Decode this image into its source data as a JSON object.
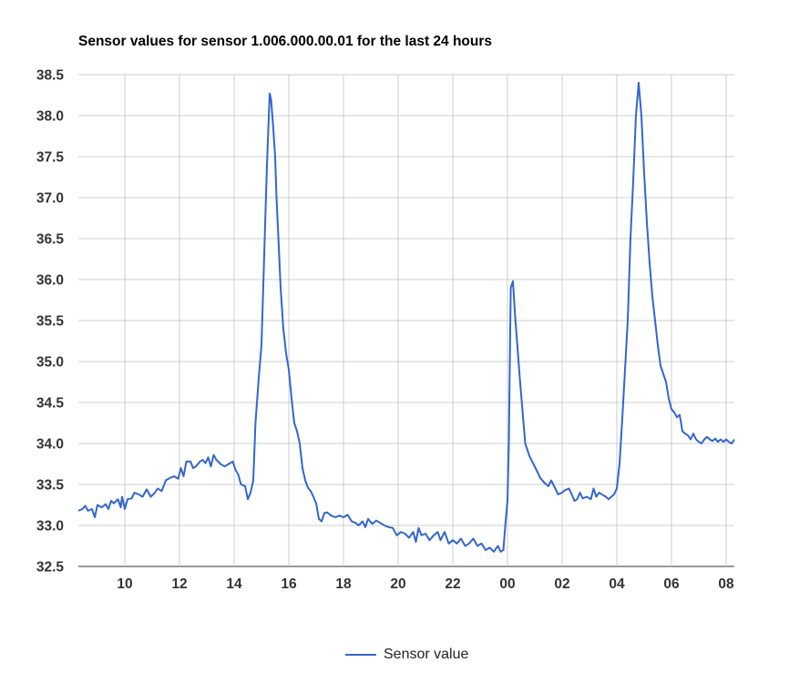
{
  "chart_data": {
    "type": "line",
    "title": "Sensor values for sensor 1.006.000.00.01 for the last 24 hours",
    "xlabel": "",
    "ylabel": "",
    "x_unit": "hours since 08:00 (first tick = 10:00 at x=2)",
    "xlim": [
      0.3,
      24.3
    ],
    "ylim": [
      32.5,
      38.5
    ],
    "y_ticks": [
      "32.5",
      "33.0",
      "33.5",
      "34.0",
      "34.5",
      "35.0",
      "35.5",
      "36.0",
      "36.5",
      "37.0",
      "37.5",
      "38.0",
      "38.5"
    ],
    "x_ticks": [
      {
        "x": 2,
        "label": "10"
      },
      {
        "x": 4,
        "label": "12"
      },
      {
        "x": 6,
        "label": "14"
      },
      {
        "x": 8,
        "label": "16"
      },
      {
        "x": 10,
        "label": "18"
      },
      {
        "x": 12,
        "label": "20"
      },
      {
        "x": 14,
        "label": "22"
      },
      {
        "x": 16,
        "label": "00"
      },
      {
        "x": 18,
        "label": "02"
      },
      {
        "x": 20,
        "label": "04"
      },
      {
        "x": 22,
        "label": "06"
      },
      {
        "x": 24,
        "label": "08"
      }
    ],
    "grid": true,
    "legend_position": "bottom",
    "series": [
      {
        "name": "Sensor value",
        "color": "#3366cc",
        "points": [
          [
            0.3,
            33.18
          ],
          [
            0.45,
            33.2
          ],
          [
            0.55,
            33.24
          ],
          [
            0.65,
            33.18
          ],
          [
            0.8,
            33.2
          ],
          [
            0.9,
            33.1
          ],
          [
            1.0,
            33.25
          ],
          [
            1.15,
            33.22
          ],
          [
            1.3,
            33.26
          ],
          [
            1.4,
            33.2
          ],
          [
            1.5,
            33.3
          ],
          [
            1.6,
            33.27
          ],
          [
            1.75,
            33.32
          ],
          [
            1.85,
            33.22
          ],
          [
            1.9,
            33.35
          ],
          [
            2.0,
            33.2
          ],
          [
            2.1,
            33.32
          ],
          [
            2.25,
            33.33
          ],
          [
            2.35,
            33.4
          ],
          [
            2.5,
            33.38
          ],
          [
            2.65,
            33.35
          ],
          [
            2.8,
            33.44
          ],
          [
            2.95,
            33.35
          ],
          [
            3.1,
            33.4
          ],
          [
            3.2,
            33.45
          ],
          [
            3.35,
            33.42
          ],
          [
            3.5,
            33.55
          ],
          [
            3.65,
            33.58
          ],
          [
            3.8,
            33.6
          ],
          [
            3.95,
            33.57
          ],
          [
            4.05,
            33.7
          ],
          [
            4.15,
            33.6
          ],
          [
            4.25,
            33.78
          ],
          [
            4.4,
            33.78
          ],
          [
            4.5,
            33.7
          ],
          [
            4.6,
            33.72
          ],
          [
            4.75,
            33.78
          ],
          [
            4.85,
            33.8
          ],
          [
            4.95,
            33.76
          ],
          [
            5.05,
            33.83
          ],
          [
            5.15,
            33.72
          ],
          [
            5.25,
            33.86
          ],
          [
            5.35,
            33.8
          ],
          [
            5.5,
            33.75
          ],
          [
            5.65,
            33.72
          ],
          [
            5.8,
            33.75
          ],
          [
            5.95,
            33.78
          ],
          [
            6.05,
            33.68
          ],
          [
            6.15,
            33.62
          ],
          [
            6.25,
            33.5
          ],
          [
            6.4,
            33.48
          ],
          [
            6.5,
            33.32
          ],
          [
            6.6,
            33.4
          ],
          [
            6.7,
            33.55
          ],
          [
            6.78,
            34.25
          ],
          [
            6.9,
            34.8
          ],
          [
            7.0,
            35.2
          ],
          [
            7.1,
            36.3
          ],
          [
            7.2,
            37.4
          ],
          [
            7.3,
            38.27
          ],
          [
            7.35,
            38.2
          ],
          [
            7.42,
            37.9
          ],
          [
            7.5,
            37.5
          ],
          [
            7.55,
            37.0
          ],
          [
            7.62,
            36.5
          ],
          [
            7.7,
            35.9
          ],
          [
            7.8,
            35.4
          ],
          [
            7.9,
            35.1
          ],
          [
            8.0,
            34.9
          ],
          [
            8.1,
            34.55
          ],
          [
            8.2,
            34.25
          ],
          [
            8.3,
            34.15
          ],
          [
            8.4,
            34.0
          ],
          [
            8.5,
            33.7
          ],
          [
            8.6,
            33.55
          ],
          [
            8.7,
            33.46
          ],
          [
            8.8,
            33.42
          ],
          [
            8.9,
            33.35
          ],
          [
            9.0,
            33.27
          ],
          [
            9.1,
            33.08
          ],
          [
            9.2,
            33.05
          ],
          [
            9.3,
            33.15
          ],
          [
            9.4,
            33.16
          ],
          [
            9.55,
            33.12
          ],
          [
            9.7,
            33.1
          ],
          [
            9.85,
            33.12
          ],
          [
            10.0,
            33.1
          ],
          [
            10.15,
            33.13
          ],
          [
            10.3,
            33.05
          ],
          [
            10.45,
            33.03
          ],
          [
            10.55,
            33.0
          ],
          [
            10.7,
            33.05
          ],
          [
            10.8,
            32.98
          ],
          [
            10.9,
            33.08
          ],
          [
            11.05,
            33.02
          ],
          [
            11.2,
            33.06
          ],
          [
            11.35,
            33.03
          ],
          [
            11.5,
            33.0
          ],
          [
            11.65,
            32.98
          ],
          [
            11.8,
            32.97
          ],
          [
            11.95,
            32.88
          ],
          [
            12.1,
            32.92
          ],
          [
            12.25,
            32.9
          ],
          [
            12.4,
            32.85
          ],
          [
            12.55,
            32.92
          ],
          [
            12.65,
            32.8
          ],
          [
            12.75,
            32.97
          ],
          [
            12.85,
            32.88
          ],
          [
            13.0,
            32.9
          ],
          [
            13.15,
            32.82
          ],
          [
            13.3,
            32.88
          ],
          [
            13.45,
            32.92
          ],
          [
            13.55,
            32.82
          ],
          [
            13.7,
            32.92
          ],
          [
            13.85,
            32.78
          ],
          [
            14.0,
            32.82
          ],
          [
            14.15,
            32.78
          ],
          [
            14.3,
            32.84
          ],
          [
            14.45,
            32.75
          ],
          [
            14.6,
            32.78
          ],
          [
            14.75,
            32.84
          ],
          [
            14.9,
            32.75
          ],
          [
            15.05,
            32.78
          ],
          [
            15.2,
            32.7
          ],
          [
            15.35,
            32.73
          ],
          [
            15.5,
            32.68
          ],
          [
            15.65,
            32.75
          ],
          [
            15.75,
            32.68
          ],
          [
            15.85,
            32.7
          ],
          [
            15.92,
            33.0
          ],
          [
            16.0,
            33.3
          ],
          [
            16.05,
            34.0
          ],
          [
            16.12,
            35.9
          ],
          [
            16.2,
            35.98
          ],
          [
            16.28,
            35.55
          ],
          [
            16.36,
            35.2
          ],
          [
            16.45,
            34.8
          ],
          [
            16.55,
            34.4
          ],
          [
            16.65,
            34.0
          ],
          [
            16.8,
            33.85
          ],
          [
            16.95,
            33.75
          ],
          [
            17.1,
            33.65
          ],
          [
            17.2,
            33.58
          ],
          [
            17.35,
            33.52
          ],
          [
            17.5,
            33.48
          ],
          [
            17.6,
            33.55
          ],
          [
            17.75,
            33.45
          ],
          [
            17.85,
            33.38
          ],
          [
            18.0,
            33.4
          ],
          [
            18.1,
            33.43
          ],
          [
            18.25,
            33.45
          ],
          [
            18.35,
            33.38
          ],
          [
            18.45,
            33.3
          ],
          [
            18.55,
            33.32
          ],
          [
            18.65,
            33.4
          ],
          [
            18.75,
            33.33
          ],
          [
            18.9,
            33.35
          ],
          [
            19.05,
            33.32
          ],
          [
            19.15,
            33.45
          ],
          [
            19.25,
            33.35
          ],
          [
            19.35,
            33.4
          ],
          [
            19.45,
            33.38
          ],
          [
            19.6,
            33.35
          ],
          [
            19.7,
            33.32
          ],
          [
            19.8,
            33.35
          ],
          [
            19.9,
            33.38
          ],
          [
            20.0,
            33.45
          ],
          [
            20.1,
            33.75
          ],
          [
            20.2,
            34.3
          ],
          [
            20.3,
            34.9
          ],
          [
            20.4,
            35.5
          ],
          [
            20.5,
            36.5
          ],
          [
            20.6,
            37.2
          ],
          [
            20.7,
            38.0
          ],
          [
            20.8,
            38.4
          ],
          [
            20.9,
            38.0
          ],
          [
            21.0,
            37.3
          ],
          [
            21.1,
            36.7
          ],
          [
            21.2,
            36.2
          ],
          [
            21.3,
            35.8
          ],
          [
            21.4,
            35.5
          ],
          [
            21.5,
            35.2
          ],
          [
            21.6,
            34.95
          ],
          [
            21.7,
            34.85
          ],
          [
            21.8,
            34.75
          ],
          [
            21.9,
            34.55
          ],
          [
            22.0,
            34.42
          ],
          [
            22.1,
            34.38
          ],
          [
            22.2,
            34.32
          ],
          [
            22.3,
            34.35
          ],
          [
            22.4,
            34.15
          ],
          [
            22.5,
            34.12
          ],
          [
            22.6,
            34.1
          ],
          [
            22.7,
            34.05
          ],
          [
            22.8,
            34.12
          ],
          [
            22.9,
            34.05
          ],
          [
            23.0,
            34.02
          ],
          [
            23.1,
            34.0
          ],
          [
            23.2,
            34.05
          ],
          [
            23.3,
            34.08
          ],
          [
            23.4,
            34.05
          ],
          [
            23.5,
            34.03
          ],
          [
            23.6,
            34.06
          ],
          [
            23.7,
            34.02
          ],
          [
            23.8,
            34.05
          ],
          [
            23.9,
            34.02
          ],
          [
            24.0,
            34.05
          ],
          [
            24.1,
            34.02
          ],
          [
            24.2,
            34.0
          ],
          [
            24.3,
            34.05
          ]
        ]
      }
    ]
  }
}
